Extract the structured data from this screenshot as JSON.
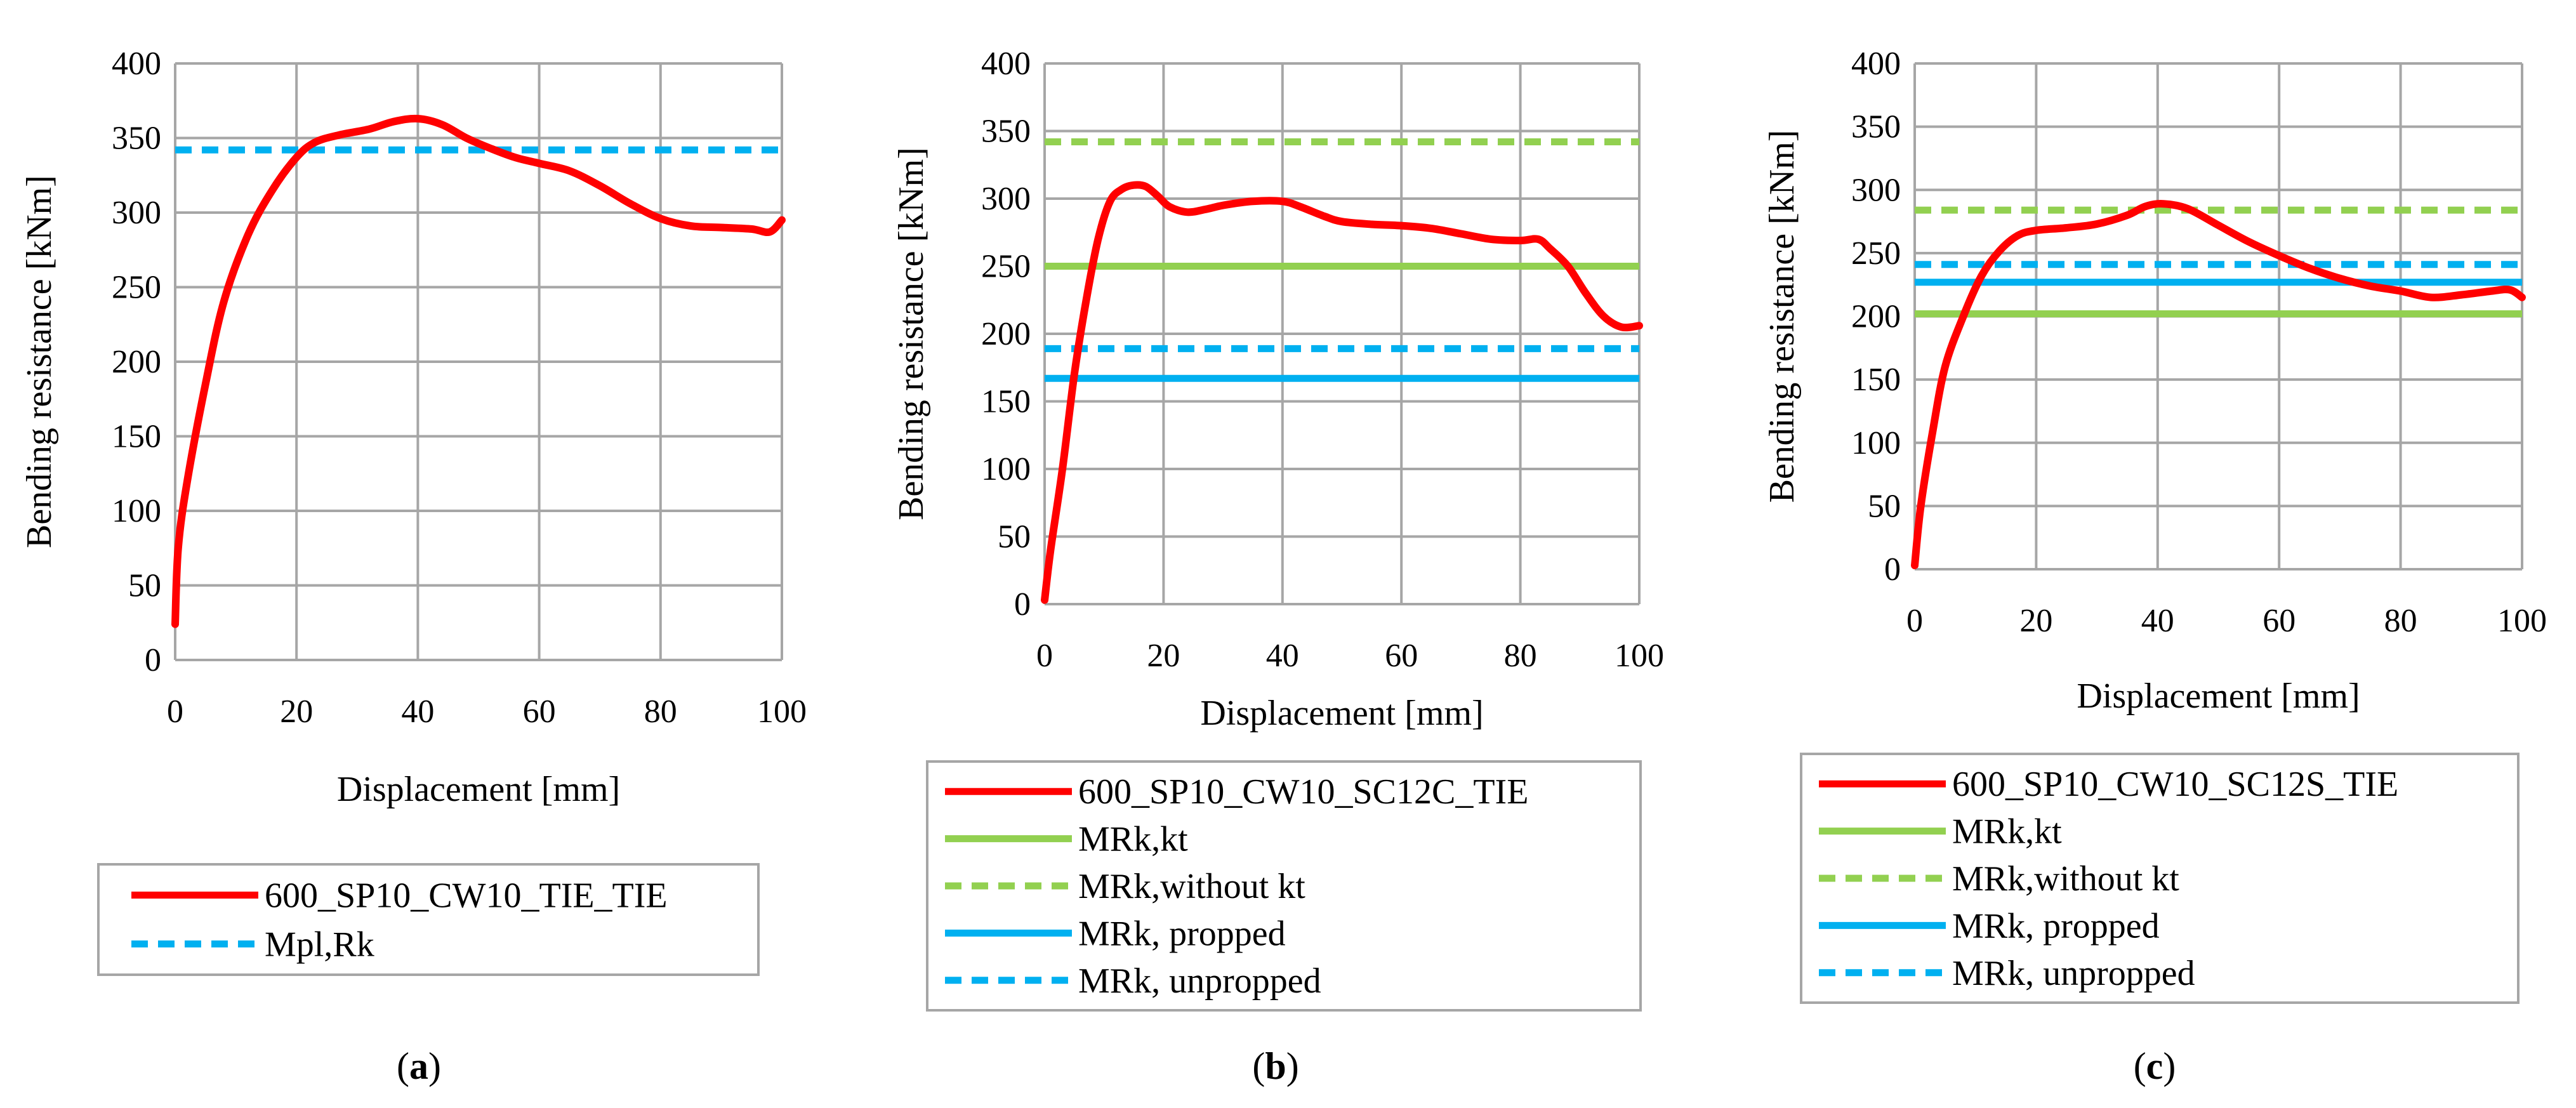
{
  "colors": {
    "red": "#ff0000",
    "green": "#92d050",
    "blue": "#00b0f0",
    "grid": "#a6a6a6",
    "legend_border": "#a6a6a6"
  },
  "chart_data": [
    {
      "type": "line",
      "panel": {
        "prefix": "(",
        "letter": "a",
        "suffix": ")"
      },
      "xlabel": "Displacement [mm]",
      "ylabel": "Bending resistance [kNm]",
      "xlim": [
        0,
        100
      ],
      "ylim": [
        0,
        400
      ],
      "xticks": [
        "0",
        "20",
        "40",
        "60",
        "80",
        "100"
      ],
      "yticks": [
        "0",
        "50",
        "100",
        "150",
        "200",
        "250",
        "300",
        "350",
        "400"
      ],
      "grid": true,
      "legend_position": "below",
      "series": [
        {
          "name": "600_SP10_CW10_TIE_TIE",
          "color": "#ff0000",
          "style": "solid",
          "kind": "curve",
          "points": [
            [
              0,
              24
            ],
            [
              0.5,
              75
            ],
            [
              2,
              120
            ],
            [
              5,
              185
            ],
            [
              8,
              240
            ],
            [
              12,
              285
            ],
            [
              16,
              315
            ],
            [
              20,
              337
            ],
            [
              23,
              347
            ],
            [
              27,
              352
            ],
            [
              32,
              356
            ],
            [
              36,
              361
            ],
            [
              40,
              363
            ],
            [
              44,
              359
            ],
            [
              48,
              350
            ],
            [
              52,
              343
            ],
            [
              56,
              337
            ],
            [
              60,
              333
            ],
            [
              65,
              328
            ],
            [
              70,
              318
            ],
            [
              75,
              306
            ],
            [
              80,
              296
            ],
            [
              85,
              291
            ],
            [
              90,
              290
            ],
            [
              95,
              289
            ],
            [
              98,
              287
            ],
            [
              100,
              295
            ]
          ]
        },
        {
          "name": "Mpl,Rk",
          "color": "#00b0f0",
          "style": "dashed",
          "kind": "hline",
          "value": 342
        }
      ]
    },
    {
      "type": "line",
      "panel": {
        "prefix": "(",
        "letter": "b",
        "suffix": ")"
      },
      "xlabel": "Displacement [mm]",
      "ylabel": "Bending resistance [kNm]",
      "xlim": [
        0,
        100
      ],
      "ylim": [
        0,
        400
      ],
      "xticks": [
        "0",
        "20",
        "40",
        "60",
        "80",
        "100"
      ],
      "yticks": [
        "0",
        "50",
        "100",
        "150",
        "200",
        "250",
        "300",
        "350",
        "400"
      ],
      "grid": true,
      "legend_position": "below",
      "series": [
        {
          "name": "600_SP10_CW10_SC12C_TIE",
          "color": "#ff0000",
          "style": "solid",
          "kind": "curve",
          "points": [
            [
              0,
              3
            ],
            [
              1,
              40
            ],
            [
              3,
              100
            ],
            [
              5,
              170
            ],
            [
              7,
              225
            ],
            [
              9,
              270
            ],
            [
              11,
              298
            ],
            [
              13,
              307
            ],
            [
              15,
              310
            ],
            [
              17,
              309
            ],
            [
              19,
              302
            ],
            [
              21,
              294
            ],
            [
              24,
              290
            ],
            [
              27,
              292
            ],
            [
              30,
              295
            ],
            [
              35,
              298
            ],
            [
              40,
              298
            ],
            [
              43,
              294
            ],
            [
              47,
              287
            ],
            [
              50,
              283
            ],
            [
              55,
              281
            ],
            [
              60,
              280
            ],
            [
              65,
              278
            ],
            [
              70,
              274
            ],
            [
              75,
              270
            ],
            [
              80,
              269
            ],
            [
              83,
              270
            ],
            [
              85,
              263
            ],
            [
              88,
              250
            ],
            [
              91,
              230
            ],
            [
              94,
              213
            ],
            [
              97,
              205
            ],
            [
              100,
              206
            ]
          ]
        },
        {
          "name": "MRk,kt",
          "color": "#92d050",
          "style": "solid",
          "kind": "hline",
          "value": 250
        },
        {
          "name": "MRk,without kt",
          "color": "#92d050",
          "style": "dashed",
          "kind": "hline",
          "value": 342
        },
        {
          "name": "MRk, propped",
          "color": "#00b0f0",
          "style": "solid",
          "kind": "hline",
          "value": 167
        },
        {
          "name": "MRk, unpropped",
          "color": "#00b0f0",
          "style": "dashed",
          "kind": "hline",
          "value": 189
        }
      ]
    },
    {
      "type": "line",
      "panel": {
        "prefix": "(",
        "letter": "c",
        "suffix": ")"
      },
      "xlabel": "Displacement [mm]",
      "ylabel": "Bending resistance [kNm]",
      "xlim": [
        0,
        100
      ],
      "ylim": [
        0,
        400
      ],
      "xticks": [
        "0",
        "20",
        "40",
        "60",
        "80",
        "100"
      ],
      "yticks": [
        "0",
        "50",
        "100",
        "150",
        "200",
        "250",
        "300",
        "350",
        "400"
      ],
      "grid": true,
      "legend_position": "below",
      "series": [
        {
          "name": "600_SP10_CW10_SC12S_TIE",
          "color": "#ff0000",
          "style": "solid",
          "kind": "curve",
          "points": [
            [
              0,
              3
            ],
            [
              1,
              50
            ],
            [
              3,
              110
            ],
            [
              5,
              160
            ],
            [
              8,
              200
            ],
            [
              11,
              232
            ],
            [
              14,
              252
            ],
            [
              17,
              264
            ],
            [
              20,
              268
            ],
            [
              25,
              270
            ],
            [
              30,
              273
            ],
            [
              35,
              280
            ],
            [
              38,
              287
            ],
            [
              41,
              289
            ],
            [
              45,
              285
            ],
            [
              50,
              272
            ],
            [
              55,
              259
            ],
            [
              60,
              248
            ],
            [
              65,
              238
            ],
            [
              70,
              230
            ],
            [
              75,
              224
            ],
            [
              80,
              220
            ],
            [
              85,
              215
            ],
            [
              90,
              217
            ],
            [
              95,
              220
            ],
            [
              98,
              221
            ],
            [
              100,
              215
            ]
          ]
        },
        {
          "name": "MRk,kt",
          "color": "#92d050",
          "style": "solid",
          "kind": "hline",
          "value": 202
        },
        {
          "name": "MRk,without kt",
          "color": "#92d050",
          "style": "dashed",
          "kind": "hline",
          "value": 284
        },
        {
          "name": "MRk, propped",
          "color": "#00b0f0",
          "style": "solid",
          "kind": "hline",
          "value": 227
        },
        {
          "name": "MRk, unpropped",
          "color": "#00b0f0",
          "style": "dashed",
          "kind": "hline",
          "value": 241
        }
      ]
    }
  ]
}
